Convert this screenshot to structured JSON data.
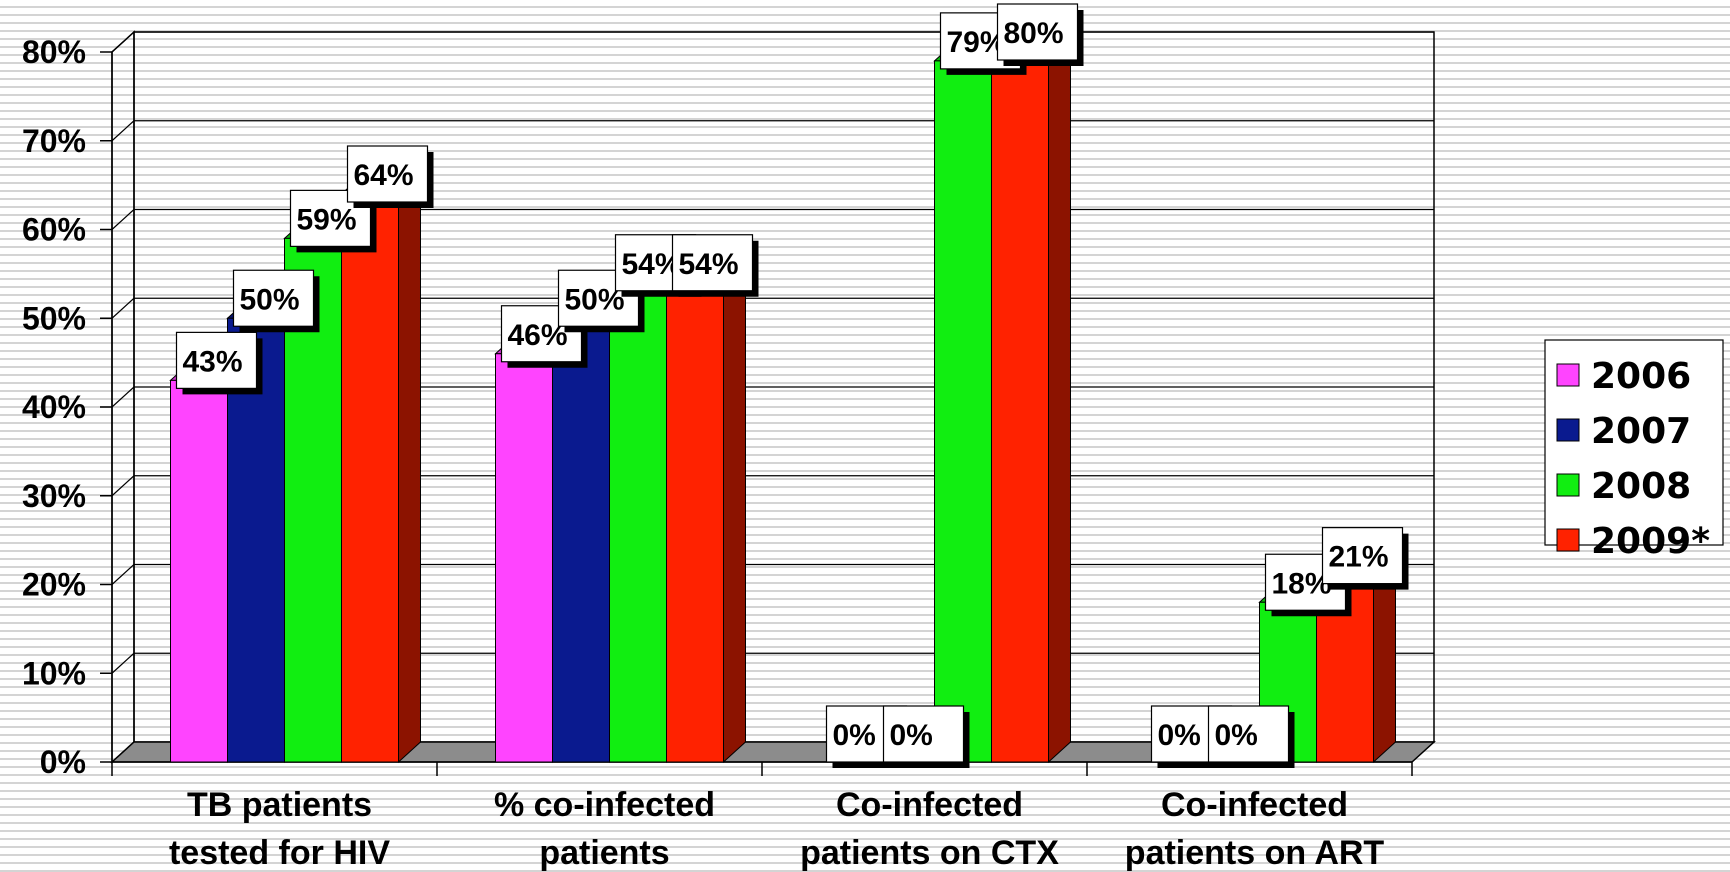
{
  "chart_data": {
    "type": "bar",
    "categories": [
      [
        "TB patients",
        "tested for HIV"
      ],
      [
        "% co-infected",
        "patients"
      ],
      [
        "Co-infected",
        "patients on CTX"
      ],
      [
        "Co-infected",
        "patients on ART"
      ]
    ],
    "series": [
      {
        "name": "2006",
        "color": "#ff44ff",
        "values": [
          43,
          46,
          0,
          0
        ],
        "labels": [
          "43%",
          "46%",
          "0%",
          "0%"
        ]
      },
      {
        "name": "2007",
        "color": "#0a1a8f",
        "values": [
          50,
          50,
          0,
          0
        ],
        "labels": [
          "50%",
          "50%",
          "0%",
          "0%"
        ]
      },
      {
        "name": "2008",
        "color": "#11ee11",
        "values": [
          59,
          54,
          79,
          18
        ],
        "labels": [
          "59%",
          "54%",
          "79%",
          "18%"
        ]
      },
      {
        "name": "2009*",
        "color": "#ff2200",
        "values": [
          64,
          54,
          80,
          21
        ],
        "labels": [
          "64%",
          "54%",
          "80%",
          "21%"
        ]
      }
    ],
    "yticks": [
      "0%",
      "10%",
      "20%",
      "30%",
      "40%",
      "50%",
      "60%",
      "70%",
      "80%"
    ],
    "ylim": [
      0,
      80
    ],
    "grid": true,
    "legend": "right",
    "title": "",
    "xlabel": "",
    "ylabel": ""
  }
}
